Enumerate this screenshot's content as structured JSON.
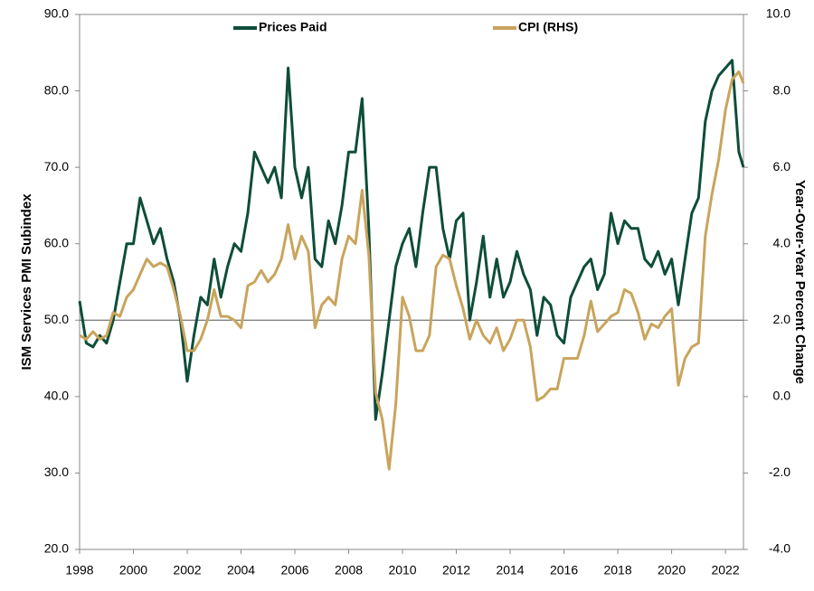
{
  "chart_data": {
    "type": "line",
    "legend": "top",
    "xlim": [
      1998,
      2022.67
    ],
    "xticks": [
      1998,
      2000,
      2002,
      2004,
      2006,
      2008,
      2010,
      2012,
      2014,
      2016,
      2018,
      2020,
      2022
    ],
    "ylim": [
      20,
      90
    ],
    "yticks": [
      {
        "value": 20,
        "label": "20.0"
      },
      {
        "value": 30,
        "label": "30.0"
      },
      {
        "value": 40,
        "label": "40.0"
      },
      {
        "value": 50,
        "label": "50.0"
      },
      {
        "value": 60,
        "label": "60.0"
      },
      {
        "value": 70,
        "label": "70.0"
      },
      {
        "value": 80,
        "label": "80.0"
      },
      {
        "value": 90,
        "label": "90.0"
      }
    ],
    "y2lim": [
      -4,
      10
    ],
    "y2ticks": [
      {
        "value": -4,
        "label": "-4.0"
      },
      {
        "value": -2,
        "label": "-2.0"
      },
      {
        "value": 0,
        "label": "0.0"
      },
      {
        "value": 2,
        "label": "2.0"
      },
      {
        "value": 4,
        "label": "4.0"
      },
      {
        "value": 6,
        "label": "6.0"
      },
      {
        "value": 8,
        "label": "8.0"
      },
      {
        "value": 10,
        "label": "10.0"
      }
    ],
    "reference_line": 50,
    "y_label": "ISM Services PMI Subindex",
    "y2_label": "Year-Over-Year Percent Change",
    "x": [
      1998.0,
      1998.25,
      1998.5,
      1998.75,
      1999.0,
      1999.25,
      1999.5,
      1999.75,
      2000.0,
      2000.25,
      2000.5,
      2000.75,
      2001.0,
      2001.25,
      2001.5,
      2001.75,
      2002.0,
      2002.25,
      2002.5,
      2002.75,
      2003.0,
      2003.25,
      2003.5,
      2003.75,
      2004.0,
      2004.25,
      2004.5,
      2004.75,
      2005.0,
      2005.25,
      2005.5,
      2005.75,
      2006.0,
      2006.25,
      2006.5,
      2006.75,
      2007.0,
      2007.25,
      2007.5,
      2007.75,
      2008.0,
      2008.25,
      2008.5,
      2008.75,
      2009.0,
      2009.25,
      2009.5,
      2009.75,
      2010.0,
      2010.25,
      2010.5,
      2010.75,
      2011.0,
      2011.25,
      2011.5,
      2011.75,
      2012.0,
      2012.25,
      2012.5,
      2012.75,
      2013.0,
      2013.25,
      2013.5,
      2013.75,
      2014.0,
      2014.25,
      2014.5,
      2014.75,
      2015.0,
      2015.25,
      2015.5,
      2015.75,
      2016.0,
      2016.25,
      2016.5,
      2016.75,
      2017.0,
      2017.25,
      2017.5,
      2017.75,
      2018.0,
      2018.25,
      2018.5,
      2018.75,
      2019.0,
      2019.25,
      2019.5,
      2019.75,
      2020.0,
      2020.25,
      2020.5,
      2020.75,
      2021.0,
      2021.25,
      2021.5,
      2021.75,
      2022.0,
      2022.25,
      2022.5,
      2022.67
    ],
    "series": [
      {
        "name": "Prices Paid",
        "color": "#0e4d3a",
        "axis": "y",
        "values": [
          52.5,
          47,
          46.5,
          48,
          47,
          50,
          55,
          60,
          60,
          66,
          63,
          60,
          62,
          58,
          55,
          50,
          42,
          48,
          53,
          52,
          58,
          53,
          57,
          60,
          59,
          64,
          72,
          70,
          68,
          70,
          66,
          83,
          70,
          66,
          70,
          58,
          57,
          63,
          60,
          65,
          72,
          72,
          79,
          62,
          37,
          43,
          50,
          57,
          60,
          62,
          57,
          64,
          70,
          70,
          62,
          58,
          63,
          64,
          50,
          55,
          61,
          53,
          58,
          53,
          55,
          59,
          56,
          54,
          48,
          53,
          52,
          48,
          47,
          53,
          55,
          57,
          58,
          54,
          56,
          64,
          60,
          63,
          62,
          62,
          58,
          57,
          59,
          56,
          58,
          52,
          58,
          64,
          66,
          76,
          80,
          82,
          83,
          84,
          72,
          70
        ]
      },
      {
        "name": "CPI (RHS)",
        "color": "#c9a45c",
        "axis": "y2",
        "values": [
          1.6,
          1.5,
          1.7,
          1.5,
          1.6,
          2.2,
          2.1,
          2.6,
          2.8,
          3.2,
          3.6,
          3.4,
          3.5,
          3.4,
          2.8,
          2.1,
          1.2,
          1.2,
          1.5,
          2.0,
          2.8,
          2.1,
          2.1,
          2.0,
          1.8,
          2.9,
          3.0,
          3.3,
          3.0,
          3.2,
          3.6,
          4.5,
          3.6,
          4.2,
          3.8,
          1.8,
          2.4,
          2.6,
          2.4,
          3.6,
          4.2,
          4.0,
          5.4,
          3.7,
          0.1,
          -0.6,
          -1.9,
          -0.2,
          2.6,
          2.1,
          1.2,
          1.2,
          1.6,
          3.4,
          3.7,
          3.6,
          2.9,
          2.3,
          1.5,
          2.0,
          1.6,
          1.4,
          1.8,
          1.2,
          1.5,
          2.0,
          2.0,
          1.3,
          -0.1,
          0.0,
          0.2,
          0.2,
          1.0,
          1.0,
          1.0,
          1.6,
          2.5,
          1.7,
          1.9,
          2.1,
          2.2,
          2.8,
          2.7,
          2.2,
          1.5,
          1.9,
          1.8,
          2.1,
          2.3,
          0.3,
          1.0,
          1.3,
          1.4,
          4.2,
          5.3,
          6.2,
          7.5,
          8.3,
          8.5,
          8.2
        ]
      }
    ]
  }
}
